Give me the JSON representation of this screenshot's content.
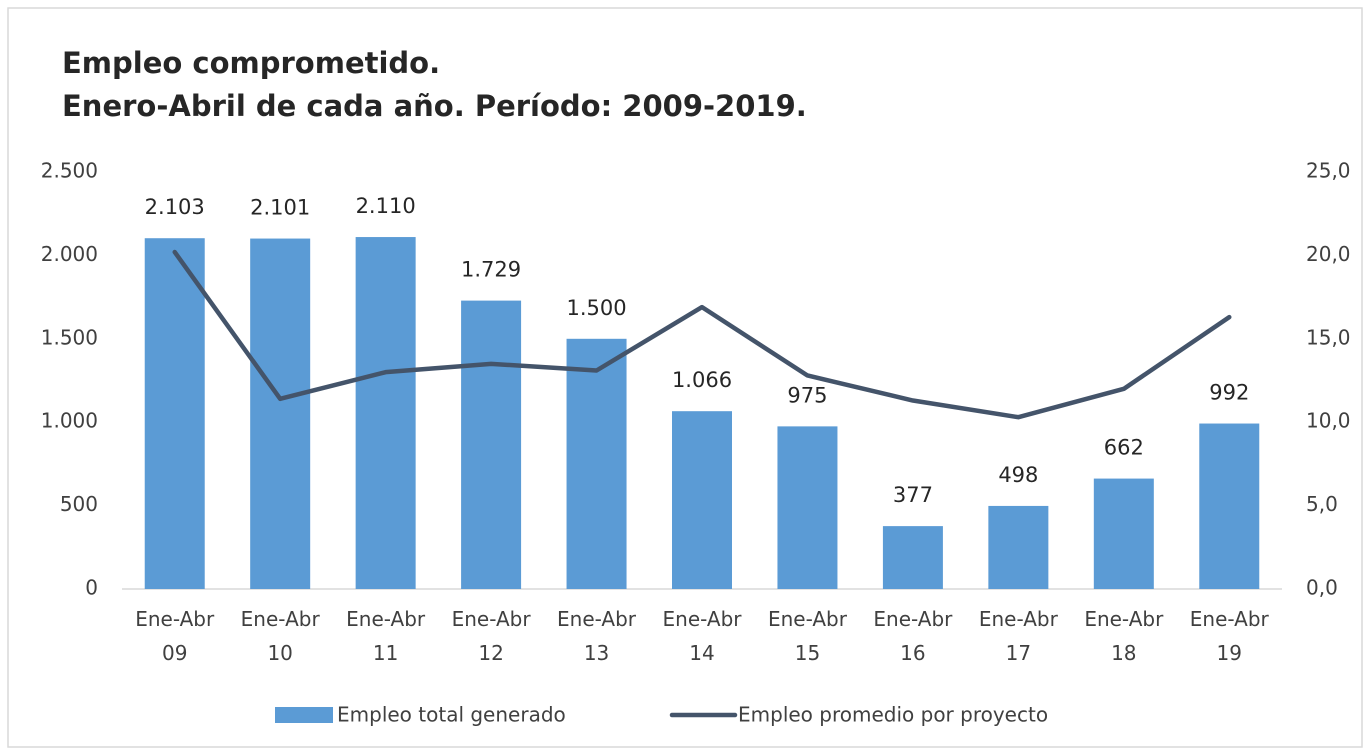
{
  "chart_data": {
    "type": "bar",
    "title": "Empleo comprometido.",
    "subtitle": "Enero-Abril de cada año. Período: 2009-2019.",
    "categories": [
      "Ene-Abr 09",
      "Ene-Abr 10",
      "Ene-Abr 11",
      "Ene-Abr 12",
      "Ene-Abr 13",
      "Ene-Abr 14",
      "Ene-Abr 15",
      "Ene-Abr 16",
      "Ene-Abr 17",
      "Ene-Abr 18",
      "Ene-Abr 19"
    ],
    "series": [
      {
        "name": "Empleo total generado",
        "type": "bar",
        "color": "#5b9bd5",
        "values": [
          2103,
          2101,
          2110,
          1729,
          1500,
          1066,
          975,
          377,
          498,
          662,
          992
        ],
        "value_labels": [
          "2.103",
          "2.101",
          "2.110",
          "1.729",
          "1.500",
          "1.066",
          "975",
          "377",
          "498",
          "662",
          "992"
        ]
      },
      {
        "name": "Empleo promedio por proyecto",
        "type": "line",
        "axis": "y2",
        "color": "#44546a",
        "values": [
          20.2,
          11.4,
          13.0,
          13.5,
          13.1,
          16.9,
          12.8,
          11.3,
          10.3,
          12.0,
          16.3
        ]
      }
    ],
    "ylim": [
      0,
      2500
    ],
    "yticks": [
      0,
      500,
      {
        "value": 1000,
        "label": "1.000"
      },
      {
        "value": 1500,
        "label": "1.500"
      },
      {
        "value": 2000,
        "label": "2.000"
      },
      {
        "value": 2500,
        "label": "2.500"
      }
    ],
    "y2lim": [
      0,
      25
    ],
    "y2ticks": [
      {
        "value": 0,
        "label": "0,0"
      },
      {
        "value": 5,
        "label": "5,0"
      },
      {
        "value": 10,
        "label": "10,0"
      },
      {
        "value": 15,
        "label": "15,0"
      },
      {
        "value": 20,
        "label": "20,0"
      },
      {
        "value": 25,
        "label": "25,0"
      }
    ],
    "grid": false,
    "legend": "bottom"
  }
}
